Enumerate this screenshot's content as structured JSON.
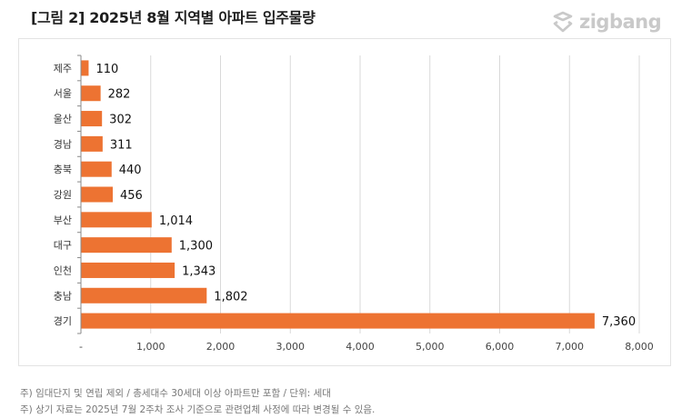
{
  "header": {
    "title": "[그림 2] 2025년 8월 지역별 아파트 입주물량",
    "logo_text": "zigbang"
  },
  "colors": {
    "bar": "#ed7332",
    "grid": "#d9d9d9",
    "axis": "#8a8a8a",
    "logo": "#c9c9c9"
  },
  "chart_data": {
    "type": "bar",
    "orientation": "horizontal",
    "categories": [
      "제주",
      "서울",
      "울산",
      "경남",
      "충북",
      "강원",
      "부산",
      "대구",
      "인천",
      "충남",
      "경기"
    ],
    "values": [
      110,
      282,
      302,
      311,
      440,
      456,
      1014,
      1300,
      1343,
      1802,
      7360
    ],
    "value_labels": [
      "110",
      "282",
      "302",
      "311",
      "440",
      "456",
      "1,014",
      "1,300",
      "1,343",
      "1,802",
      "7,360"
    ],
    "xlim": [
      0,
      8000
    ],
    "xticks": [
      0,
      1000,
      2000,
      3000,
      4000,
      5000,
      6000,
      7000,
      8000
    ],
    "xtick_labels": [
      "-",
      "1,000",
      "2,000",
      "3,000",
      "4,000",
      "5,000",
      "6,000",
      "7,000",
      "8,000"
    ],
    "grid": "vertical",
    "legend": "none",
    "title": "[그림 2] 2025년 8월 지역별 아파트 입주물량"
  },
  "footnotes": [
    "주) 임대단지 및 연립 제외 / 총세대수 30세대 이상 아파트만 포함 / 단위: 세대",
    "주) 상기 자료는 2025년 7월 2주차 조사 기준으로 관련업체 사정에 따라 변경될 수 있음."
  ]
}
